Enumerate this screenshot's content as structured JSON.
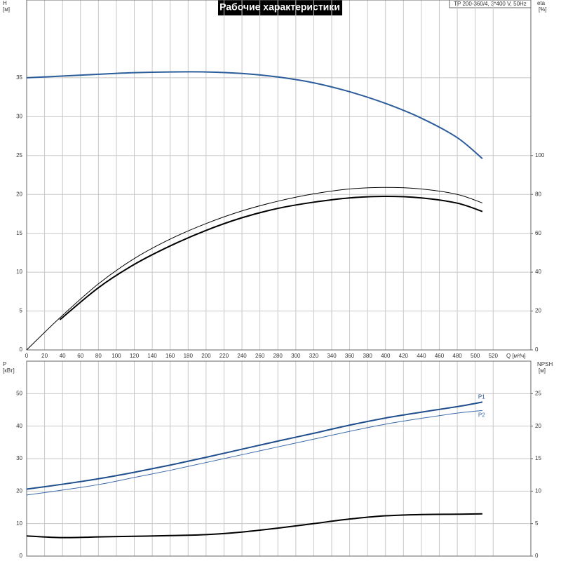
{
  "title": "Рабочие характеристики",
  "model": "TP 200-360/4, 3*400 V, 50Hz",
  "chart_data": [
    {
      "type": "line",
      "ylabel": "H",
      "yunit": "[м]",
      "y2label": "eta",
      "y2unit": "[%]",
      "xlabel": "Q [м³/ч]",
      "x": [
        0,
        37,
        80,
        120,
        160,
        200,
        240,
        280,
        320,
        360,
        400,
        440,
        480,
        508
      ],
      "xlim": [
        0,
        562
      ],
      "xticks": [
        0,
        20,
        40,
        60,
        80,
        100,
        120,
        140,
        160,
        180,
        200,
        220,
        240,
        260,
        280,
        300,
        320,
        340,
        360,
        380,
        400,
        420,
        440,
        460,
        480,
        500,
        520
      ],
      "ylim": [
        0,
        45
      ],
      "yticks": [
        0,
        5,
        10,
        15,
        20,
        25,
        30,
        35
      ],
      "y2lim": [
        0,
        180
      ],
      "y2ticks": [
        0,
        20,
        40,
        60,
        80,
        100
      ],
      "grid": true,
      "series": [
        {
          "color": "#2b5c9b",
          "width": 2,
          "values": [
            35.0,
            35.2,
            35.45,
            35.65,
            35.75,
            35.75,
            35.55,
            35.1,
            34.35,
            33.2,
            31.7,
            29.8,
            27.3,
            24.6
          ]
        },
        {
          "color": "#000000",
          "width": 2,
          "axis": "y2",
          "values": [
            null,
            15.5,
            32,
            44,
            53.5,
            61.5,
            68,
            72.8,
            76,
            78.2,
            79,
            78.2,
            75.5,
            71.2
          ]
        },
        {
          "color": "#000000",
          "width": 1,
          "axis": "y2",
          "values": [
            0,
            16.5,
            34,
            47,
            57,
            65,
            71.5,
            76.5,
            80.3,
            82.8,
            83.6,
            82.8,
            80,
            75.6
          ]
        }
      ]
    },
    {
      "type": "line",
      "ylabel": "P",
      "yunit": "[кВт]",
      "y2label": "NPSH",
      "y2unit": "[м]",
      "x": [
        0,
        37,
        80,
        120,
        160,
        200,
        240,
        280,
        320,
        360,
        400,
        440,
        480,
        508
      ],
      "xlim": [
        0,
        562
      ],
      "ylim": [
        0,
        60
      ],
      "yticks": [
        0,
        10,
        20,
        30,
        40,
        50
      ],
      "y2lim": [
        0,
        30
      ],
      "y2ticks": [
        0,
        5,
        10,
        15,
        20,
        25
      ],
      "grid": true,
      "series": [
        {
          "name": "P1",
          "color": "#1f4e8c",
          "width": 2,
          "values": [
            20.6,
            22,
            23.8,
            25.8,
            28,
            30.4,
            32.9,
            35.4,
            37.8,
            40.3,
            42.5,
            44.3,
            46,
            47.4
          ]
        },
        {
          "name": "P2",
          "color": "#3a6aa8",
          "width": 1,
          "values": [
            18.8,
            20.2,
            22,
            24.2,
            26.4,
            28.8,
            31.2,
            33.6,
            36,
            38.4,
            40.6,
            42.4,
            44,
            44.8
          ]
        },
        {
          "color": "#000000",
          "width": 2,
          "axis": "y2",
          "values": [
            3.1,
            2.85,
            2.95,
            3.05,
            3.15,
            3.3,
            3.7,
            4.3,
            5.0,
            5.7,
            6.2,
            6.4,
            6.45,
            6.5
          ]
        }
      ]
    }
  ]
}
